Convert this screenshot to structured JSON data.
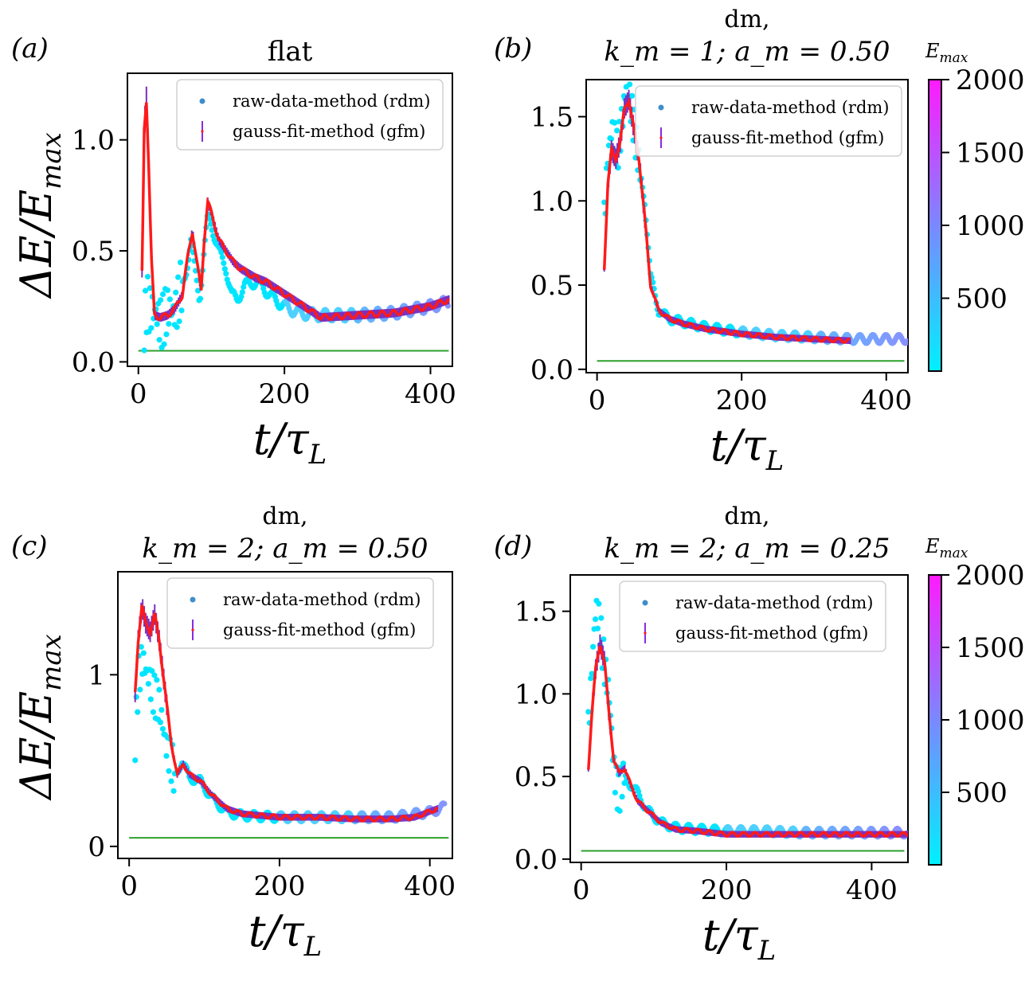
{
  "figure": {
    "colorbar_label": "E_max",
    "colorbar_ticks": [
      "500",
      "1000",
      "1500",
      "2000"
    ],
    "colorbar_range": [
      0,
      2000
    ],
    "colors": {
      "gfm_line": "#ff1a1a",
      "gfm_err": "#7b2fbf",
      "threshold": "#2ca02c",
      "rdm_low": "#00e5ff",
      "rdm_high": "#ff00ff",
      "legend_rdm_marker": "#3e8ecb",
      "legend_gfm_marker": "#8a2be2"
    }
  },
  "chart_data": [
    {
      "id": "a",
      "panel_label": "(a)",
      "title_lines": [
        "flat"
      ],
      "type": "scatter",
      "xlabel": "t/τ_L",
      "ylabel": "ΔE/E_max",
      "xlim": [
        -15,
        430
      ],
      "ylim": [
        -0.02,
        1.3
      ],
      "xticks": [
        0,
        200,
        400
      ],
      "xtick_labels": [
        "0",
        "200",
        "400"
      ],
      "yticks": [
        0.0,
        0.5,
        1.0
      ],
      "ytick_labels": [
        "0.0",
        "0.5",
        "1.0"
      ],
      "threshold": 0.05,
      "legend": [
        "raw-data-method (rdm)",
        "gauss-fit-method (gfm)"
      ],
      "gfm_curve": [
        [
          5,
          0.4
        ],
        [
          8,
          1.05
        ],
        [
          11,
          1.18
        ],
        [
          14,
          0.9
        ],
        [
          18,
          0.45
        ],
        [
          22,
          0.21
        ],
        [
          30,
          0.2
        ],
        [
          40,
          0.21
        ],
        [
          50,
          0.24
        ],
        [
          60,
          0.3
        ],
        [
          68,
          0.48
        ],
        [
          74,
          0.59
        ],
        [
          80,
          0.45
        ],
        [
          86,
          0.32
        ],
        [
          90,
          0.55
        ],
        [
          95,
          0.72
        ],
        [
          100,
          0.67
        ],
        [
          110,
          0.55
        ],
        [
          120,
          0.5
        ],
        [
          130,
          0.45
        ],
        [
          140,
          0.42
        ],
        [
          150,
          0.4
        ],
        [
          160,
          0.38
        ],
        [
          175,
          0.36
        ],
        [
          250,
          0.2
        ],
        [
          300,
          0.21
        ],
        [
          350,
          0.22
        ],
        [
          400,
          0.25
        ],
        [
          425,
          0.28
        ]
      ],
      "rdm_curve": [
        [
          8,
          0.15
        ],
        [
          12,
          0.3
        ],
        [
          16,
          0.25
        ],
        [
          22,
          0.2
        ],
        [
          30,
          0.2
        ],
        [
          40,
          0.21
        ],
        [
          55,
          0.27
        ],
        [
          65,
          0.4
        ],
        [
          72,
          0.55
        ],
        [
          78,
          0.4
        ],
        [
          84,
          0.28
        ],
        [
          90,
          0.5
        ],
        [
          95,
          0.65
        ],
        [
          100,
          0.62
        ],
        [
          110,
          0.5
        ],
        [
          120,
          0.42
        ],
        [
          128,
          0.3
        ],
        [
          135,
          0.28
        ],
        [
          145,
          0.34
        ],
        [
          155,
          0.36
        ],
        [
          168,
          0.35
        ],
        [
          180,
          0.3
        ],
        [
          200,
          0.25
        ],
        [
          220,
          0.22
        ],
        [
          250,
          0.21
        ],
        [
          300,
          0.21
        ],
        [
          350,
          0.22
        ],
        [
          400,
          0.25
        ],
        [
          425,
          0.27
        ]
      ]
    },
    {
      "id": "b",
      "panel_label": "(b)",
      "title_lines": [
        "dm,",
        "k_m = 1; a_m = 0.50"
      ],
      "type": "scatter",
      "xlabel": "t/τ_L",
      "ylabel": "",
      "xlim": [
        -15,
        430
      ],
      "ylim": [
        -0.02,
        1.72
      ],
      "xticks": [
        0,
        200,
        400
      ],
      "xtick_labels": [
        "0",
        "200",
        "400"
      ],
      "yticks": [
        0.0,
        0.5,
        1.0,
        1.5
      ],
      "ytick_labels": [
        "0.0",
        "0.5",
        "1.0",
        "1.5"
      ],
      "threshold": 0.05,
      "legend": [
        "raw-data-method (rdm)",
        "gauss-fit-method (gfm)"
      ],
      "gfm_curve": [
        [
          10,
          0.6
        ],
        [
          15,
          1.1
        ],
        [
          20,
          1.3
        ],
        [
          26,
          1.25
        ],
        [
          32,
          1.35
        ],
        [
          38,
          1.55
        ],
        [
          44,
          1.6
        ],
        [
          50,
          1.45
        ],
        [
          58,
          1.25
        ],
        [
          66,
          0.9
        ],
        [
          74,
          0.5
        ],
        [
          85,
          0.35
        ],
        [
          100,
          0.3
        ],
        [
          120,
          0.27
        ],
        [
          150,
          0.24
        ],
        [
          200,
          0.21
        ],
        [
          250,
          0.19
        ],
        [
          300,
          0.18
        ],
        [
          350,
          0.17
        ]
      ],
      "rdm_curve": [
        [
          10,
          0.9
        ],
        [
          15,
          1.3
        ],
        [
          20,
          1.4
        ],
        [
          28,
          1.3
        ],
        [
          35,
          1.5
        ],
        [
          42,
          1.7
        ],
        [
          50,
          1.5
        ],
        [
          58,
          1.2
        ],
        [
          66,
          1.0
        ],
        [
          74,
          0.55
        ],
        [
          85,
          0.35
        ],
        [
          100,
          0.3
        ],
        [
          120,
          0.28
        ],
        [
          150,
          0.25
        ],
        [
          200,
          0.22
        ],
        [
          250,
          0.2
        ],
        [
          300,
          0.19
        ],
        [
          350,
          0.18
        ],
        [
          400,
          0.18
        ],
        [
          430,
          0.18
        ]
      ]
    },
    {
      "id": "c",
      "panel_label": "(c)",
      "title_lines": [
        "dm,",
        "k_m = 2; a_m = 0.50"
      ],
      "type": "scatter",
      "xlabel": "t/τ_L",
      "ylabel": "ΔE/E_max",
      "xlim": [
        -15,
        430
      ],
      "ylim": [
        -0.07,
        1.6
      ],
      "xticks": [
        0,
        200,
        400
      ],
      "xtick_labels": [
        "0",
        "200",
        "400"
      ],
      "yticks": [
        0,
        1
      ],
      "ytick_labels": [
        "0",
        "1"
      ],
      "threshold": 0.05,
      "legend": [
        "raw-data-method (rdm)",
        "gauss-fit-method (gfm)"
      ],
      "gfm_curve": [
        [
          8,
          0.9
        ],
        [
          12,
          1.2
        ],
        [
          17,
          1.4
        ],
        [
          22,
          1.3
        ],
        [
          28,
          1.25
        ],
        [
          34,
          1.35
        ],
        [
          40,
          1.2
        ],
        [
          48,
          0.9
        ],
        [
          56,
          0.6
        ],
        [
          64,
          0.42
        ],
        [
          72,
          0.48
        ],
        [
          80,
          0.42
        ],
        [
          95,
          0.38
        ],
        [
          110,
          0.3
        ],
        [
          130,
          0.22
        ],
        [
          150,
          0.19
        ],
        [
          200,
          0.17
        ],
        [
          250,
          0.17
        ],
        [
          300,
          0.16
        ],
        [
          350,
          0.16
        ],
        [
          380,
          0.17
        ],
        [
          410,
          0.22
        ]
      ],
      "rdm_curve": [
        [
          8,
          0.6
        ],
        [
          12,
          1.0
        ],
        [
          17,
          1.1
        ],
        [
          22,
          1.0
        ],
        [
          30,
          0.95
        ],
        [
          40,
          0.8
        ],
        [
          50,
          0.6
        ],
        [
          60,
          0.4
        ],
        [
          70,
          0.5
        ],
        [
          80,
          0.4
        ],
        [
          95,
          0.38
        ],
        [
          110,
          0.28
        ],
        [
          130,
          0.2
        ],
        [
          150,
          0.18
        ],
        [
          200,
          0.17
        ],
        [
          250,
          0.17
        ],
        [
          300,
          0.17
        ],
        [
          350,
          0.17
        ],
        [
          400,
          0.2
        ],
        [
          420,
          0.23
        ]
      ]
    },
    {
      "id": "d",
      "panel_label": "(d)",
      "title_lines": [
        "dm,",
        "k_m = 2; a_m = 0.25"
      ],
      "type": "scatter",
      "xlabel": "t/τ_L",
      "ylabel": "",
      "xlim": [
        -15,
        450
      ],
      "ylim": [
        -0.02,
        1.72
      ],
      "xticks": [
        0,
        200,
        400
      ],
      "xtick_labels": [
        "0",
        "200",
        "400"
      ],
      "yticks": [
        0.0,
        0.5,
        1.0,
        1.5
      ],
      "ytick_labels": [
        "0.0",
        "0.5",
        "1.0",
        "1.5"
      ],
      "threshold": 0.05,
      "legend": [
        "raw-data-method (rdm)",
        "gauss-fit-method (gfm)"
      ],
      "gfm_curve": [
        [
          10,
          0.55
        ],
        [
          15,
          0.9
        ],
        [
          20,
          1.15
        ],
        [
          26,
          1.3
        ],
        [
          32,
          1.2
        ],
        [
          38,
          0.9
        ],
        [
          45,
          0.6
        ],
        [
          52,
          0.52
        ],
        [
          60,
          0.55
        ],
        [
          68,
          0.45
        ],
        [
          78,
          0.35
        ],
        [
          90,
          0.3
        ],
        [
          110,
          0.22
        ],
        [
          130,
          0.18
        ],
        [
          160,
          0.17
        ],
        [
          200,
          0.15
        ],
        [
          250,
          0.15
        ],
        [
          300,
          0.15
        ],
        [
          350,
          0.15
        ],
        [
          400,
          0.15
        ],
        [
          450,
          0.15
        ]
      ],
      "rdm_curve": [
        [
          10,
          0.8
        ],
        [
          15,
          1.2
        ],
        [
          20,
          1.5
        ],
        [
          26,
          1.4
        ],
        [
          32,
          1.2
        ],
        [
          38,
          1.0
        ],
        [
          45,
          0.55
        ],
        [
          52,
          0.4
        ],
        [
          60,
          0.5
        ],
        [
          68,
          0.45
        ],
        [
          78,
          0.4
        ],
        [
          90,
          0.3
        ],
        [
          110,
          0.22
        ],
        [
          130,
          0.19
        ],
        [
          160,
          0.18
        ],
        [
          200,
          0.17
        ],
        [
          250,
          0.17
        ],
        [
          300,
          0.16
        ],
        [
          350,
          0.16
        ],
        [
          400,
          0.16
        ],
        [
          450,
          0.16
        ]
      ]
    }
  ]
}
